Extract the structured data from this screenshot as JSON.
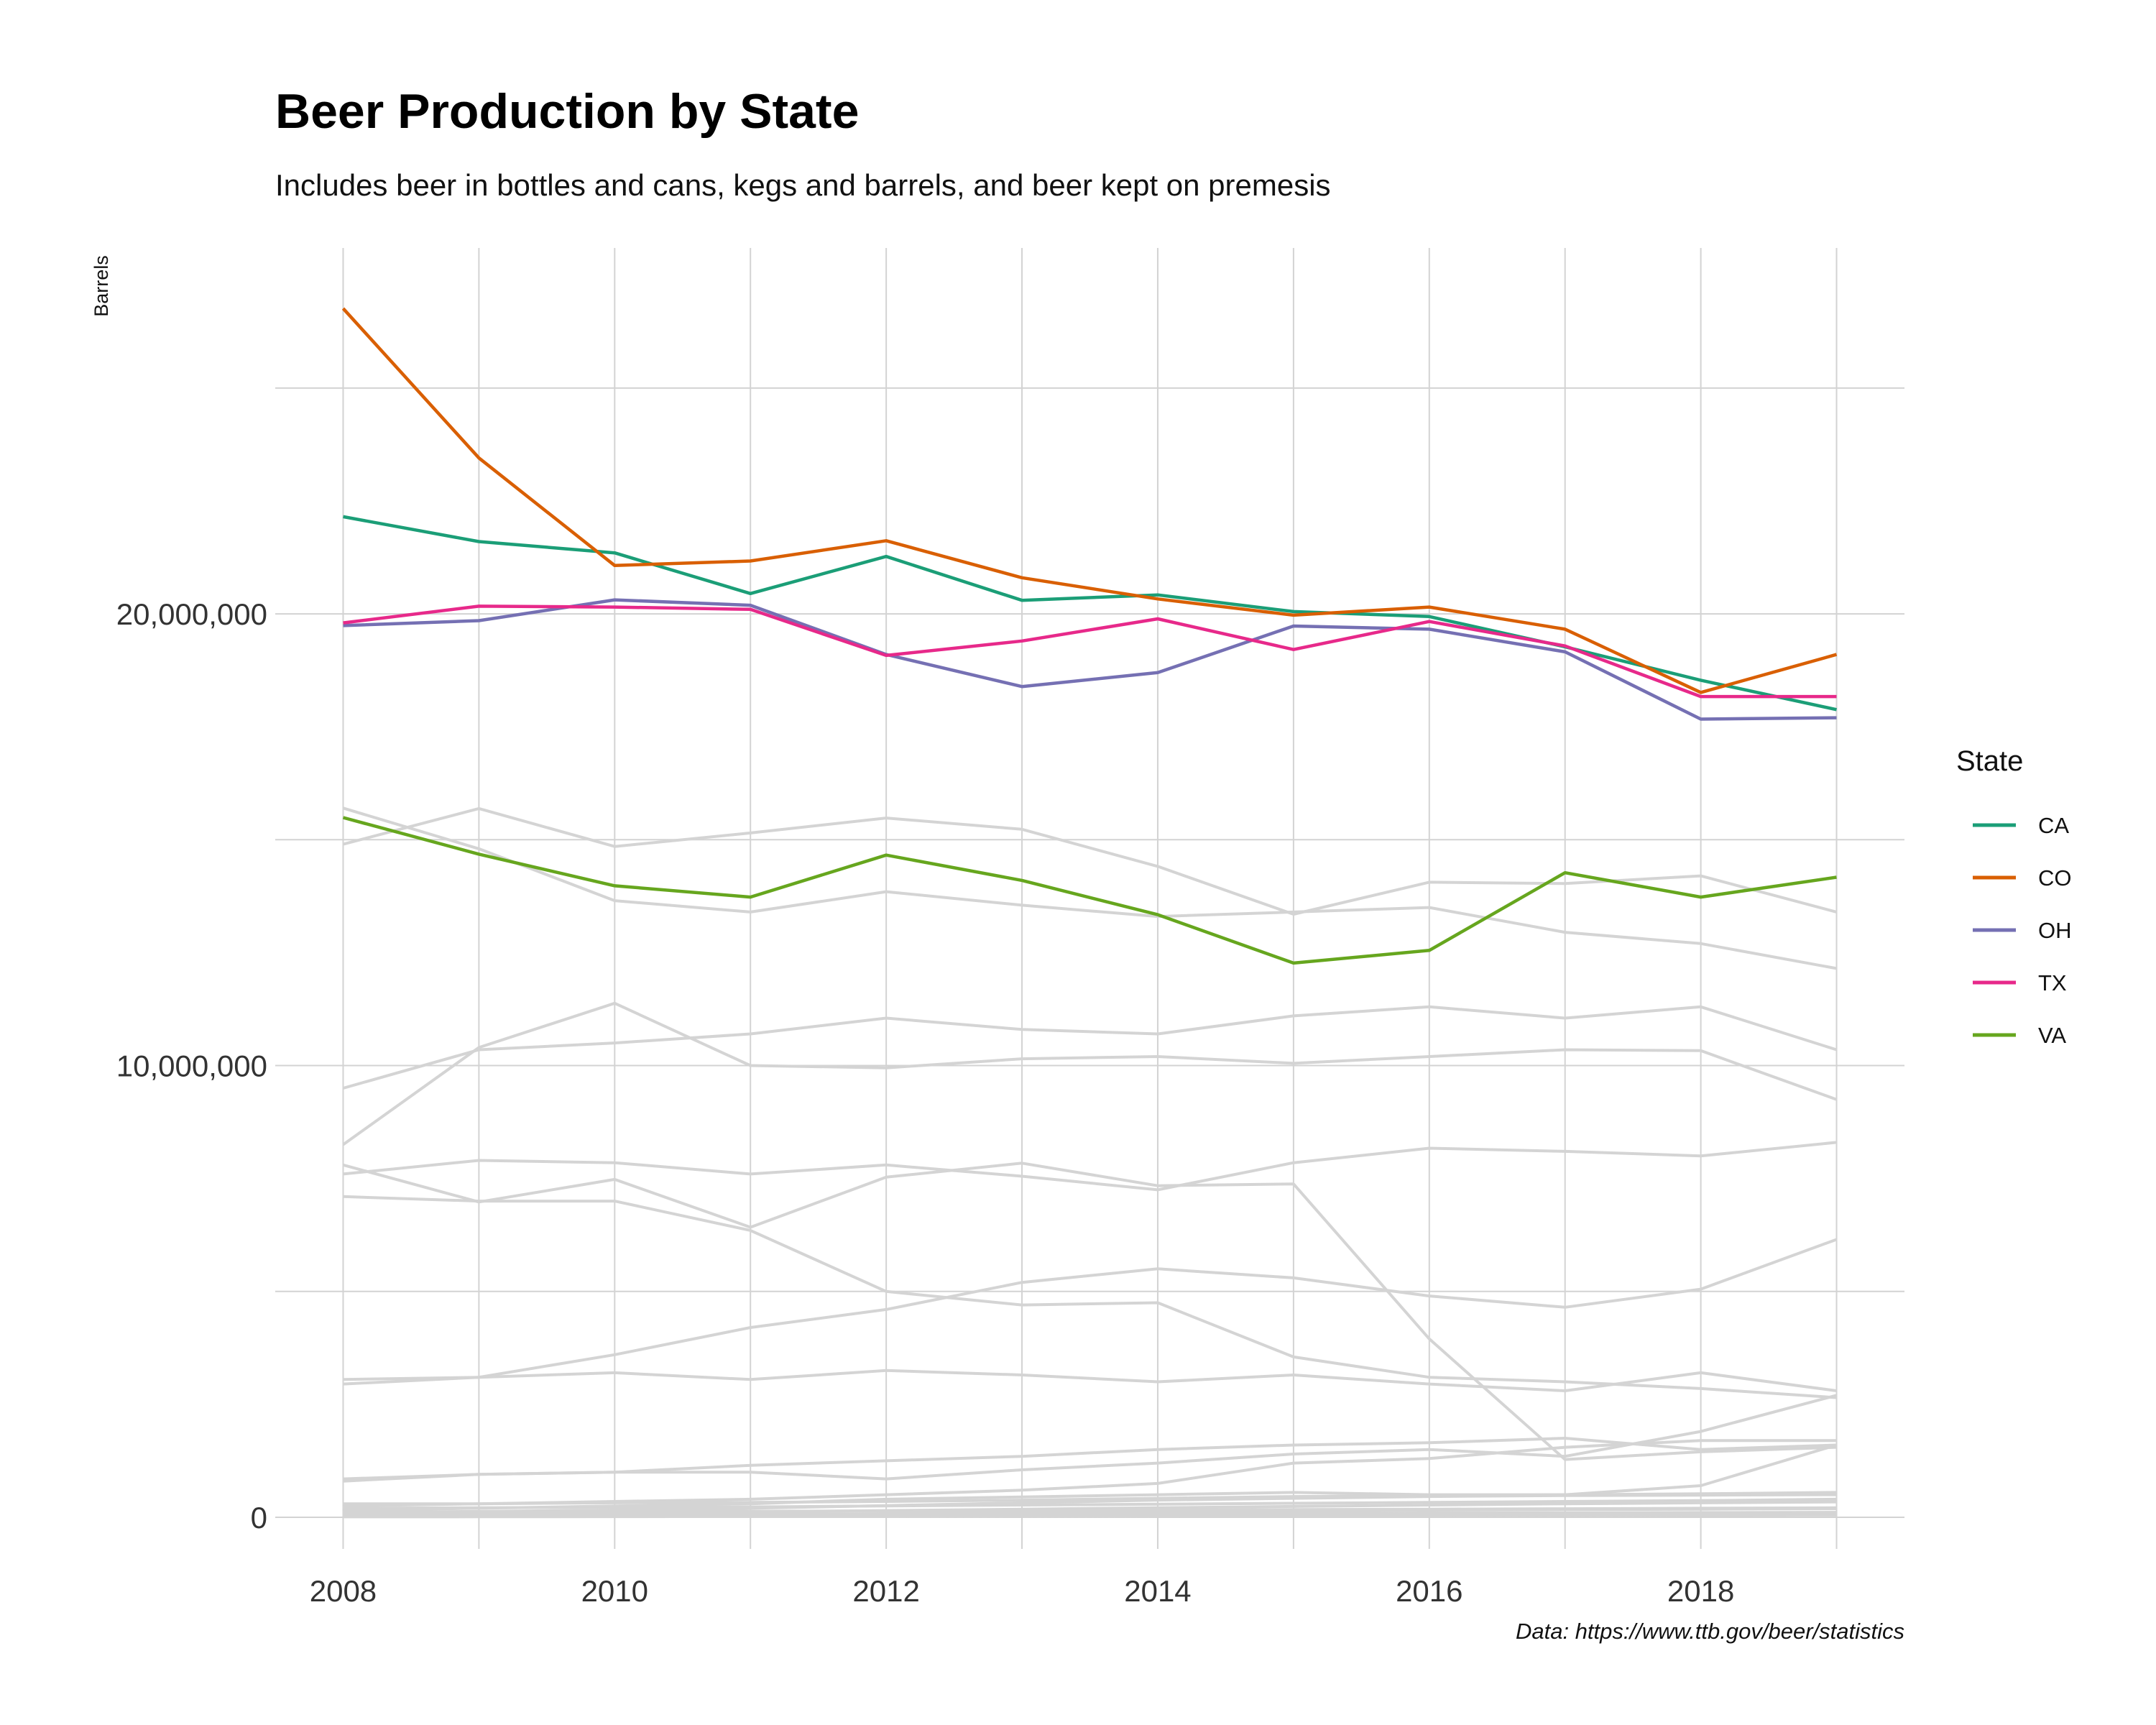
{
  "chart_data": {
    "type": "line",
    "title": "Beer Production by State",
    "subtitle": "Includes beer in bottles and cans, kegs and barrels, and beer kept on premesis",
    "ylabel": "Barrels",
    "xlabel": "",
    "caption": "Data: https://www.ttb.gov/beer/statistics",
    "x": [
      2008,
      2009,
      2010,
      2011,
      2012,
      2013,
      2014,
      2015,
      2016,
      2017,
      2018,
      2019
    ],
    "xlim": [
      2007.5,
      2019.5
    ],
    "ylim": [
      -700000,
      28100000
    ],
    "x_ticks": [
      2008,
      2010,
      2012,
      2014,
      2016,
      2018
    ],
    "x_tick_labels": [
      "2008",
      "2010",
      "2012",
      "2014",
      "2016",
      "2018"
    ],
    "y_ticks": [
      0,
      10000000,
      20000000
    ],
    "y_tick_labels": [
      "0",
      "10,000,000",
      "20,000,000"
    ],
    "grid": true,
    "legend": {
      "title": "State",
      "position": "right"
    },
    "series": [
      {
        "name": "CA",
        "color": "#1b9e77",
        "values": [
          22150000,
          21600000,
          21350000,
          20450000,
          21270000,
          20300000,
          20420000,
          20050000,
          19940000,
          19270000,
          18530000,
          17880000
        ]
      },
      {
        "name": "CO",
        "color": "#d95f02",
        "values": [
          26760000,
          23450000,
          21070000,
          21170000,
          21620000,
          20800000,
          20330000,
          19970000,
          20150000,
          19660000,
          18260000,
          19100000
        ]
      },
      {
        "name": "OH",
        "color": "#7570b3",
        "values": [
          19740000,
          19850000,
          20310000,
          20190000,
          19100000,
          18390000,
          18700000,
          19730000,
          19660000,
          19160000,
          17670000,
          17700000
        ]
      },
      {
        "name": "TX",
        "color": "#e7298a",
        "values": [
          19800000,
          20170000,
          20150000,
          20100000,
          19080000,
          19400000,
          19890000,
          19210000,
          19830000,
          19290000,
          18170000,
          18170000
        ]
      },
      {
        "name": "VA",
        "color": "#66a61e",
        "values": [
          15490000,
          14680000,
          13980000,
          13730000,
          14660000,
          14100000,
          13340000,
          12270000,
          12550000,
          14270000,
          13730000,
          14170000
        ]
      }
    ],
    "background_series": {
      "color": "#d4d4d4",
      "lines": [
        [
          15700000,
          14800000,
          13650000,
          13400000,
          13850000,
          13550000,
          13300000,
          13400000,
          13500000,
          12950000,
          12700000,
          12150000
        ],
        [
          14900000,
          15690000,
          14850000,
          15150000,
          15480000,
          15230000,
          14410000,
          13350000,
          14060000,
          14030000,
          14200000,
          13400000
        ],
        [
          9500000,
          10350000,
          10500000,
          10700000,
          11050000,
          10800000,
          10700000,
          11100000,
          11300000,
          11050000,
          11300000,
          10350000
        ],
        [
          8250000,
          10400000,
          11380000,
          10000000,
          9950000,
          10150000,
          10200000,
          10050000,
          10200000,
          10350000,
          10330000,
          9250000
        ],
        [
          7800000,
          6980000,
          7480000,
          6420000,
          7530000,
          7840000,
          7340000,
          7380000,
          3950000,
          1280000,
          1450000,
          1550000
        ],
        [
          7600000,
          7900000,
          7850000,
          7600000,
          7800000,
          7550000,
          7250000,
          7850000,
          8170000,
          8100000,
          8000000,
          8300000
        ],
        [
          7100000,
          7000000,
          7000000,
          6350000,
          5000000,
          4700000,
          4750000,
          3550000,
          3100000,
          3000000,
          2850000,
          2650000
        ],
        [
          2950000,
          3100000,
          3600000,
          4200000,
          4600000,
          5200000,
          5500000,
          5300000,
          4900000,
          4650000,
          5050000,
          6150000
        ],
        [
          3050000,
          3100000,
          3200000,
          3050000,
          3250000,
          3150000,
          3000000,
          3150000,
          2950000,
          2800000,
          3200000,
          2800000
        ],
        [
          800000,
          950000,
          1000000,
          1000000,
          850000,
          1050000,
          1200000,
          1400000,
          1500000,
          1350000,
          1900000,
          2700000
        ],
        [
          850000,
          950000,
          1000000,
          1150000,
          1250000,
          1350000,
          1500000,
          1600000,
          1650000,
          1750000,
          1500000,
          1600000
        ],
        [
          250000,
          300000,
          350000,
          400000,
          500000,
          600000,
          750000,
          1200000,
          1300000,
          1550000,
          1700000,
          1700000
        ],
        [
          150000,
          200000,
          250000,
          300000,
          400000,
          450000,
          500000,
          550000,
          500000,
          500000,
          700000,
          1600000
        ],
        [
          300000,
          300000,
          320000,
          330000,
          350000,
          380000,
          420000,
          460000,
          480000,
          500000,
          520000,
          550000
        ],
        [
          100000,
          130000,
          160000,
          200000,
          260000,
          320000,
          380000,
          420000,
          460000,
          480000,
          490000,
          500000
        ],
        [
          200000,
          210000,
          220000,
          230000,
          250000,
          270000,
          290000,
          310000,
          330000,
          350000,
          370000,
          400000
        ],
        [
          50000,
          70000,
          90000,
          120000,
          150000,
          180000,
          210000,
          240000,
          270000,
          300000,
          320000,
          340000
        ],
        [
          120000,
          125000,
          130000,
          135000,
          140000,
          150000,
          160000,
          170000,
          180000,
          190000,
          200000,
          210000
        ],
        [
          30000,
          40000,
          50000,
          60000,
          80000,
          100000,
          120000,
          140000,
          160000,
          170000,
          180000,
          190000
        ],
        [
          60000,
          62000,
          65000,
          70000,
          75000,
          80000,
          85000,
          90000,
          95000,
          100000,
          105000,
          110000
        ],
        [
          20000,
          25000,
          30000,
          35000,
          40000,
          45000,
          50000,
          55000,
          60000,
          65000,
          70000,
          75000
        ],
        [
          10000,
          12000,
          15000,
          18000,
          22000,
          26000,
          30000,
          34000,
          38000,
          42000,
          46000,
          50000
        ]
      ]
    }
  }
}
